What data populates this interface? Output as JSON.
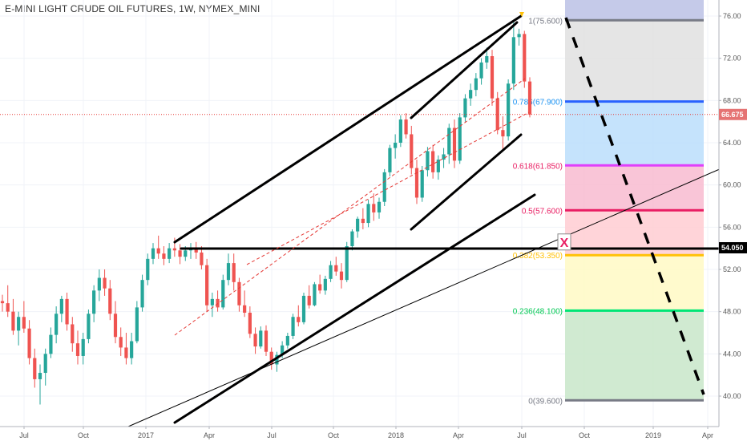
{
  "title": "E-MINI LIGHT CRUDE OIL FUTURES, 1W, NYMEX_MINI",
  "colors": {
    "up": "#26a69a",
    "down": "#ef5350",
    "grid": "#f0f3f8",
    "trend": "#000000",
    "channel_dash": "#e53935",
    "price_tag_current": "#e57373",
    "price_tag_level": "#000000"
  },
  "chart_data": {
    "type": "candlestick",
    "title": "E-MINI LIGHT CRUDE OIL FUTURES, 1W, NYMEX_MINI",
    "y_ticks": [
      "40.00",
      "44.00",
      "48.00",
      "52.00",
      "56.00",
      "60.00",
      "64.00",
      "68.00",
      "72.00",
      "76.00"
    ],
    "y_tick_values": [
      40,
      44,
      48,
      52,
      56,
      60,
      64,
      68,
      72,
      76
    ],
    "ylim": [
      38,
      77.6
    ],
    "x_ticks": [
      "Jul",
      "Oct",
      "2017",
      "Apr",
      "Jul",
      "Oct",
      "2018",
      "Apr",
      "Jul",
      "Oct",
      "2019",
      "Apr"
    ],
    "grid": true,
    "current_price": {
      "label": "66.675",
      "value": 66.675
    },
    "level_price": {
      "label": "54.050",
      "value": 54.05
    },
    "fib_levels": [
      {
        "label": "1(75.600)",
        "value": 75.6,
        "line": "#787b86",
        "fill": "#c5cae9",
        "text": "#787b86"
      },
      {
        "label": "0.786(67.900)",
        "value": 67.9,
        "line": "#2962ff",
        "fill": "#e0e0e0",
        "text": "#2196f3"
      },
      {
        "label": "0.618(61.850)",
        "value": 61.85,
        "line": "#e040fb",
        "fill": "#bbdefb",
        "text": "#e91e63"
      },
      {
        "label": "0.5(57.600)",
        "value": 57.6,
        "line": "#e91e63",
        "fill": "#f8bbd0",
        "text": "#e91e63"
      },
      {
        "label": "0.382(53.350)",
        "value": 53.35,
        "line": "#ffc107",
        "fill": "#ffcdd2",
        "text": "#ffc107"
      },
      {
        "label": "0.236(48.100)",
        "value": 48.1,
        "line": "#00e676",
        "fill": "#fff9c4",
        "text": "#00c853"
      },
      {
        "label": "0(39.600)",
        "value": 39.6,
        "line": "#787b86",
        "fill": "#c8e6c9",
        "text": "#787b86"
      }
    ],
    "marker_x": {
      "label": "X",
      "value": 54.6
    },
    "candles": [
      [
        49.0,
        49.6,
        48.0,
        48.8
      ],
      [
        48.8,
        50.5,
        47.5,
        48.0
      ],
      [
        48.0,
        49.2,
        45.8,
        46.2
      ],
      [
        46.2,
        48.0,
        44.8,
        47.5
      ],
      [
        47.5,
        49.0,
        46.0,
        46.4
      ],
      [
        46.4,
        47.2,
        43.0,
        43.6
      ],
      [
        43.6,
        44.5,
        40.8,
        41.6
      ],
      [
        41.6,
        43.0,
        39.2,
        42.2
      ],
      [
        42.2,
        44.5,
        41.0,
        44.0
      ],
      [
        44.0,
        46.5,
        43.6,
        45.8
      ],
      [
        45.8,
        48.5,
        45.0,
        47.8
      ],
      [
        47.8,
        49.5,
        47.0,
        49.2
      ],
      [
        49.2,
        49.8,
        46.2,
        46.8
      ],
      [
        46.8,
        47.5,
        44.2,
        45.0
      ],
      [
        45.0,
        46.2,
        43.0,
        43.8
      ],
      [
        43.8,
        46.0,
        43.0,
        45.4
      ],
      [
        45.4,
        48.2,
        45.0,
        47.8
      ],
      [
        47.8,
        50.5,
        47.0,
        50.0
      ],
      [
        50.0,
        52.0,
        49.0,
        51.2
      ],
      [
        51.2,
        52.0,
        49.5,
        50.2
      ],
      [
        50.2,
        51.0,
        47.2,
        47.8
      ],
      [
        47.8,
        49.0,
        45.0,
        45.6
      ],
      [
        45.6,
        46.5,
        43.8,
        44.6
      ],
      [
        44.6,
        46.0,
        43.0,
        43.6
      ],
      [
        43.6,
        46.0,
        43.0,
        45.2
      ],
      [
        45.2,
        49.0,
        45.0,
        48.4
      ],
      [
        48.4,
        51.5,
        48.0,
        51.0
      ],
      [
        51.0,
        53.5,
        50.5,
        53.0
      ],
      [
        53.0,
        54.5,
        52.5,
        54.0
      ],
      [
        54.0,
        55.2,
        53.0,
        53.5
      ],
      [
        53.5,
        54.2,
        52.4,
        53.0
      ],
      [
        53.0,
        54.5,
        52.6,
        54.0
      ],
      [
        54.0,
        55.0,
        53.2,
        53.8
      ],
      [
        53.8,
        54.4,
        52.5,
        53.2
      ],
      [
        53.2,
        54.2,
        52.8,
        53.8
      ],
      [
        53.8,
        54.5,
        53.0,
        53.9
      ],
      [
        53.9,
        54.6,
        53.0,
        53.6
      ],
      [
        53.6,
        54.2,
        52.0,
        52.4
      ],
      [
        52.4,
        53.0,
        48.0,
        48.6
      ],
      [
        48.6,
        49.8,
        47.5,
        49.2
      ],
      [
        49.2,
        50.0,
        48.0,
        48.4
      ],
      [
        48.4,
        51.5,
        48.2,
        51.0
      ],
      [
        51.0,
        53.5,
        50.5,
        52.6
      ],
      [
        52.6,
        53.5,
        50.0,
        50.8
      ],
      [
        50.8,
        51.2,
        48.0,
        48.6
      ],
      [
        48.6,
        50.0,
        47.5,
        47.9
      ],
      [
        47.9,
        48.5,
        45.5,
        45.9
      ],
      [
        45.9,
        46.5,
        44.0,
        44.7
      ],
      [
        44.7,
        46.6,
        44.5,
        46.2
      ],
      [
        46.2,
        46.7,
        43.8,
        44.2
      ],
      [
        44.2,
        44.6,
        42.5,
        43.0
      ],
      [
        43.0,
        44.2,
        42.3,
        43.9
      ],
      [
        43.9,
        45.2,
        43.6,
        44.8
      ],
      [
        44.8,
        46.0,
        44.5,
        45.7
      ],
      [
        45.7,
        47.8,
        45.4,
        47.5
      ],
      [
        47.5,
        48.6,
        46.6,
        47.0
      ],
      [
        47.0,
        49.8,
        46.8,
        49.5
      ],
      [
        49.5,
        50.5,
        48.3,
        48.6
      ],
      [
        48.6,
        50.8,
        48.5,
        50.6
      ],
      [
        50.6,
        51.5,
        49.7,
        50.0
      ],
      [
        50.0,
        51.4,
        49.6,
        51.1
      ],
      [
        51.1,
        52.8,
        50.8,
        52.4
      ],
      [
        52.4,
        53.2,
        51.4,
        51.8
      ],
      [
        51.8,
        52.6,
        50.2,
        51.0
      ],
      [
        51.0,
        54.6,
        50.8,
        54.2
      ],
      [
        54.2,
        55.8,
        53.8,
        55.6
      ],
      [
        55.6,
        57.0,
        55.0,
        56.8
      ],
      [
        56.8,
        57.8,
        55.8,
        56.4
      ],
      [
        56.4,
        58.6,
        56.0,
        58.2
      ],
      [
        58.2,
        59.2,
        56.6,
        57.4
      ],
      [
        57.4,
        58.8,
        56.8,
        58.4
      ],
      [
        58.4,
        61.5,
        58.0,
        61.2
      ],
      [
        61.2,
        63.8,
        60.8,
        63.5
      ],
      [
        63.5,
        64.8,
        62.5,
        64.0
      ],
      [
        64.0,
        66.6,
        63.6,
        66.2
      ],
      [
        66.2,
        66.8,
        64.4,
        64.8
      ],
      [
        64.8,
        65.6,
        61.0,
        61.6
      ],
      [
        61.6,
        62.4,
        58.2,
        58.8
      ],
      [
        58.8,
        61.8,
        58.4,
        61.4
      ],
      [
        61.4,
        63.6,
        60.8,
        63.2
      ],
      [
        63.2,
        63.8,
        60.6,
        61.2
      ],
      [
        61.2,
        62.8,
        60.5,
        62.4
      ],
      [
        62.4,
        63.5,
        61.6,
        62.9
      ],
      [
        62.9,
        65.8,
        62.0,
        65.4
      ],
      [
        65.4,
        66.2,
        61.6,
        62.3
      ],
      [
        62.3,
        66.8,
        62.0,
        66.4
      ],
      [
        66.4,
        68.6,
        66.0,
        68.2
      ],
      [
        68.2,
        69.6,
        67.5,
        69.0
      ],
      [
        69.0,
        70.6,
        68.4,
        70.1
      ],
      [
        70.1,
        72.0,
        69.5,
        71.6
      ],
      [
        71.6,
        73.0,
        71.0,
        72.2
      ],
      [
        72.2,
        72.8,
        67.5,
        68.2
      ],
      [
        68.2,
        68.8,
        64.8,
        65.2
      ],
      [
        65.2,
        66.5,
        63.4,
        64.6
      ],
      [
        64.6,
        70.0,
        64.2,
        69.6
      ],
      [
        69.6,
        75.4,
        69.0,
        74.0
      ],
      [
        74.0,
        74.8,
        73.2,
        74.3
      ],
      [
        74.3,
        74.6,
        69.2,
        69.8
      ],
      [
        69.8,
        70.2,
        66.4,
        66.675
      ]
    ]
  }
}
